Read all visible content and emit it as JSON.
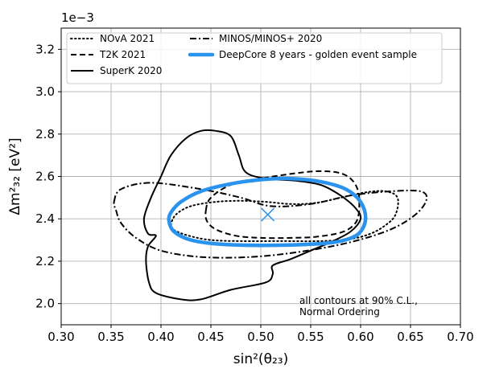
{
  "chart_data": {
    "type": "line",
    "xlabel": "sin²(θ₂₃)",
    "ylabel": "Δm²₃₂ [eV²]",
    "y_offset_label": "1e−3",
    "xlim": [
      0.3,
      0.7
    ],
    "ylim": [
      1.9,
      3.3
    ],
    "xticks": [
      "0.30",
      "0.35",
      "0.40",
      "0.45",
      "0.50",
      "0.55",
      "0.60",
      "0.65",
      "0.70"
    ],
    "yticks": [
      "2.0",
      "2.2",
      "2.4",
      "2.6",
      "2.8",
      "3.0",
      "3.2"
    ],
    "grid": true,
    "legend_position": "top",
    "annotation": [
      "all contours at 90% C.L.,",
      "Normal Ordering"
    ],
    "best_fit": {
      "x": 0.507,
      "y": 2.42,
      "color": "#2a93ee"
    },
    "series": [
      {
        "name": "NOvA 2021",
        "style": "dotted",
        "color": "#000000",
        "points": [
          [
            0.41,
            2.37
          ],
          [
            0.415,
            2.42
          ],
          [
            0.43,
            2.46
          ],
          [
            0.455,
            2.48
          ],
          [
            0.48,
            2.485
          ],
          [
            0.505,
            2.48
          ],
          [
            0.53,
            2.47
          ],
          [
            0.555,
            2.475
          ],
          [
            0.58,
            2.5
          ],
          [
            0.605,
            2.525
          ],
          [
            0.625,
            2.53
          ],
          [
            0.637,
            2.5
          ],
          [
            0.635,
            2.42
          ],
          [
            0.625,
            2.37
          ],
          [
            0.61,
            2.33
          ],
          [
            0.59,
            2.305
          ],
          [
            0.56,
            2.295
          ],
          [
            0.52,
            2.295
          ],
          [
            0.48,
            2.295
          ],
          [
            0.45,
            2.3
          ],
          [
            0.428,
            2.32
          ],
          [
            0.414,
            2.345
          ],
          [
            0.41,
            2.37
          ]
        ]
      },
      {
        "name": "T2K 2021",
        "style": "dashed",
        "color": "#000000",
        "points": [
          [
            0.445,
            2.44
          ],
          [
            0.45,
            2.5
          ],
          [
            0.47,
            2.56
          ],
          [
            0.5,
            2.59
          ],
          [
            0.535,
            2.615
          ],
          [
            0.56,
            2.625
          ],
          [
            0.58,
            2.615
          ],
          [
            0.592,
            2.58
          ],
          [
            0.598,
            2.52
          ],
          [
            0.598,
            2.42
          ],
          [
            0.593,
            2.37
          ],
          [
            0.58,
            2.335
          ],
          [
            0.555,
            2.315
          ],
          [
            0.53,
            2.31
          ],
          [
            0.5,
            2.31
          ],
          [
            0.475,
            2.32
          ],
          [
            0.455,
            2.35
          ],
          [
            0.446,
            2.39
          ],
          [
            0.445,
            2.44
          ]
        ]
      },
      {
        "name": "SuperK 2020",
        "style": "solid",
        "color": "#000000",
        "points": [
          [
            0.395,
            2.32
          ],
          [
            0.387,
            2.33
          ],
          [
            0.383,
            2.4
          ],
          [
            0.39,
            2.5
          ],
          [
            0.4,
            2.6
          ],
          [
            0.41,
            2.7
          ],
          [
            0.425,
            2.78
          ],
          [
            0.44,
            2.815
          ],
          [
            0.455,
            2.815
          ],
          [
            0.47,
            2.79
          ],
          [
            0.478,
            2.7
          ],
          [
            0.485,
            2.62
          ],
          [
            0.505,
            2.59
          ],
          [
            0.535,
            2.58
          ],
          [
            0.56,
            2.56
          ],
          [
            0.58,
            2.51
          ],
          [
            0.595,
            2.45
          ],
          [
            0.6,
            2.4
          ],
          [
            0.59,
            2.34
          ],
          [
            0.57,
            2.29
          ],
          [
            0.55,
            2.25
          ],
          [
            0.53,
            2.21
          ],
          [
            0.512,
            2.18
          ],
          [
            0.512,
            2.14
          ],
          [
            0.505,
            2.1
          ],
          [
            0.47,
            2.065
          ],
          [
            0.44,
            2.02
          ],
          [
            0.42,
            2.02
          ],
          [
            0.395,
            2.05
          ],
          [
            0.388,
            2.1
          ],
          [
            0.385,
            2.2
          ],
          [
            0.387,
            2.27
          ],
          [
            0.395,
            2.32
          ]
        ]
      },
      {
        "name": "MINOS/MINOS+ 2020",
        "style": "dashdot",
        "color": "#000000",
        "points": [
          [
            0.353,
            2.48
          ],
          [
            0.36,
            2.54
          ],
          [
            0.39,
            2.57
          ],
          [
            0.44,
            2.54
          ],
          [
            0.48,
            2.5
          ],
          [
            0.51,
            2.46
          ],
          [
            0.55,
            2.47
          ],
          [
            0.59,
            2.51
          ],
          [
            0.63,
            2.53
          ],
          [
            0.66,
            2.53
          ],
          [
            0.666,
            2.49
          ],
          [
            0.655,
            2.42
          ],
          [
            0.63,
            2.35
          ],
          [
            0.59,
            2.29
          ],
          [
            0.54,
            2.245
          ],
          [
            0.49,
            2.22
          ],
          [
            0.44,
            2.22
          ],
          [
            0.4,
            2.25
          ],
          [
            0.375,
            2.31
          ],
          [
            0.36,
            2.38
          ],
          [
            0.355,
            2.44
          ],
          [
            0.353,
            2.48
          ]
        ]
      },
      {
        "name": "DeepCore 8 years - golden event sample",
        "style": "solid-thick",
        "color": "#2a93ee",
        "points": [
          [
            0.41,
            2.43
          ],
          [
            0.42,
            2.48
          ],
          [
            0.44,
            2.53
          ],
          [
            0.47,
            2.565
          ],
          [
            0.5,
            2.585
          ],
          [
            0.53,
            2.59
          ],
          [
            0.56,
            2.575
          ],
          [
            0.585,
            2.54
          ],
          [
            0.6,
            2.48
          ],
          [
            0.605,
            2.4
          ],
          [
            0.598,
            2.33
          ],
          [
            0.58,
            2.295
          ],
          [
            0.55,
            2.28
          ],
          [
            0.5,
            2.275
          ],
          [
            0.46,
            2.28
          ],
          [
            0.43,
            2.3
          ],
          [
            0.413,
            2.34
          ],
          [
            0.408,
            2.39
          ],
          [
            0.41,
            2.43
          ]
        ]
      }
    ]
  }
}
